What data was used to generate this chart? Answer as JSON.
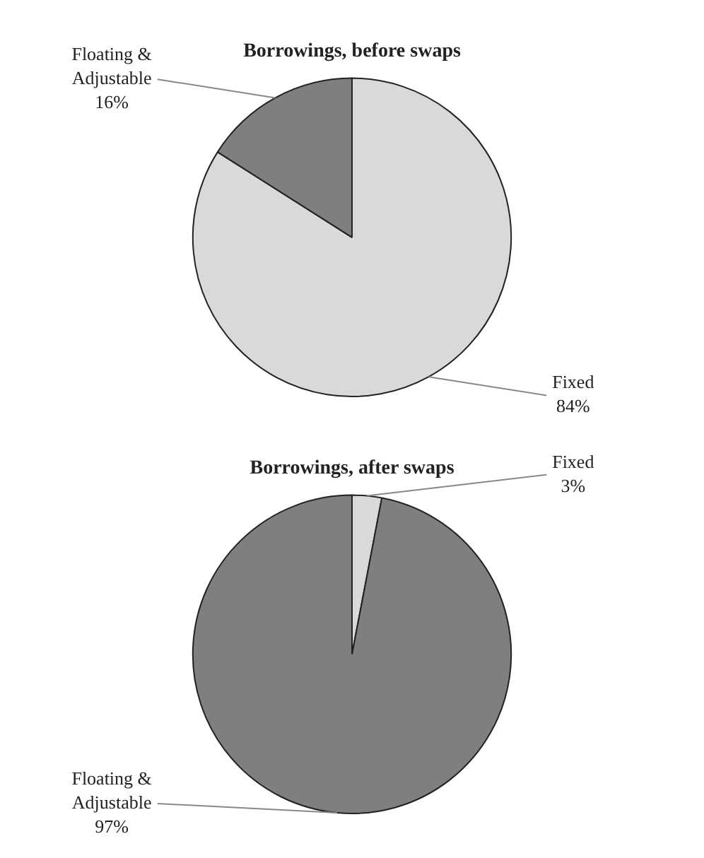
{
  "chart_data": [
    {
      "type": "pie",
      "title": "Borrowings, before swaps",
      "categories": [
        "Fixed",
        "Floating & Adjustable"
      ],
      "values": [
        84,
        16
      ],
      "colors": [
        "#d9d9d9",
        "#7f7f7f"
      ],
      "value_labels": [
        "84%",
        "16%"
      ],
      "legend": false
    },
    {
      "type": "pie",
      "title": "Borrowings, after swaps",
      "categories": [
        "Fixed",
        "Floating & Adjustable"
      ],
      "values": [
        3,
        97
      ],
      "colors": [
        "#d9d9d9",
        "#7f7f7f"
      ],
      "value_labels": [
        "3%",
        "97%"
      ],
      "legend": false
    }
  ]
}
